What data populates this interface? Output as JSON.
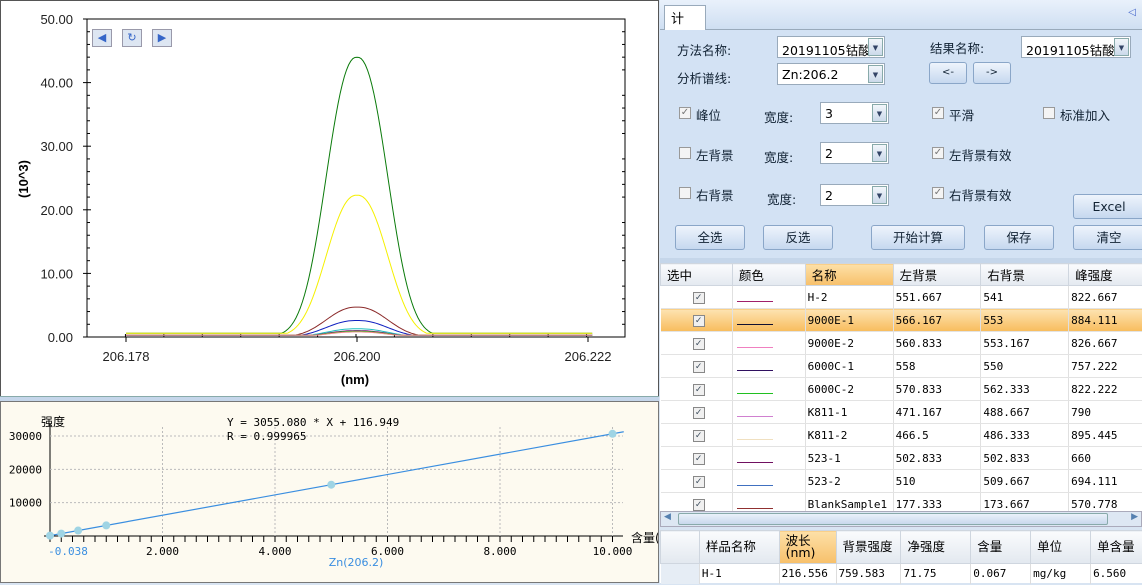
{
  "spectrum_chart": {
    "chart_data": {
      "type": "line",
      "ylabel": "(10^3)",
      "xlabel": "(nm)",
      "y_ticks": [
        "50.00",
        "40.00",
        "30.00",
        "20.00",
        "10.00",
        "0.00"
      ],
      "x_ticks": [
        "206.178",
        "206.200",
        "206.222"
      ],
      "ylim": [
        0,
        50
      ],
      "xlim": [
        206.1717,
        206.2285
      ],
      "series": [
        {
          "color": "#0a7a0a",
          "peak": 44.0
        },
        {
          "color": "#f5f000",
          "peak": 22.3
        },
        {
          "color": "#8b2a2a",
          "peak": 4.7
        },
        {
          "color": "#1020c0",
          "peak": 2.6
        },
        {
          "color": "#20c0c0",
          "peak": 1.3
        },
        {
          "color": "#800080",
          "peak": 1.0
        },
        {
          "color": "#20c020",
          "peak": 0.9
        },
        {
          "color": "#f08080",
          "peak": 0.8
        }
      ],
      "baseline": 0.6,
      "center": 206.2
    }
  },
  "calib_chart": {
    "chart_data": {
      "type": "scatter",
      "equation": "Y = 3055.080 * X + 116.949",
      "r_value": "R = 0.999965",
      "ylabel": "强度",
      "xlabel": "含量(",
      "series_label": "Zn(206.2)",
      "y_ticks": [
        "30000",
        "20000",
        "10000"
      ],
      "x_ticks": [
        "-0.038",
        "2.000",
        "4.000",
        "6.000",
        "8.000",
        "10.000"
      ],
      "xlim": [
        -0.038,
        10.25
      ],
      "ylim": [
        0,
        33000
      ],
      "slope": 3055.08,
      "intercept": 116.949,
      "points_x": [
        0,
        0.2,
        0.5,
        1,
        5,
        10
      ],
      "line_color": "#3a8ee0",
      "point_color": "#9fd4e4"
    }
  },
  "tab": {
    "label": "计 算"
  },
  "form": {
    "method_label": "方法名称:",
    "method_value": "20191105钴酸",
    "result_label": "结果名称:",
    "result_value": "20191105钴酸",
    "line_label": "分析谱线:",
    "line_value": "Zn:206.2",
    "prev": "<-",
    "next": "->",
    "peak": {
      "label": "峰位",
      "checked": true
    },
    "width_label": "宽度:",
    "width1": "3",
    "smooth": {
      "label": "平滑",
      "checked": true
    },
    "std_add": {
      "label": "标准加入",
      "checked": false
    },
    "left_bg": {
      "label": "左背景",
      "checked": false
    },
    "width2": "2",
    "left_bg_valid": {
      "label": "左背景有效",
      "checked": true
    },
    "right_bg": {
      "label": "右背景",
      "checked": false
    },
    "width3": "2",
    "right_bg_valid": {
      "label": "右背景有效",
      "checked": true
    },
    "excel": "Excel",
    "select_all": "全选",
    "invert": "反选",
    "calc": "开始计算",
    "save": "保存",
    "clear": "清空"
  },
  "grid": {
    "columns": [
      "选中",
      "颜色",
      "名称",
      "左背景",
      "右背景",
      "峰强度"
    ],
    "rows": [
      {
        "color": "#a0206a",
        "name": "H-2",
        "left": "551.667",
        "right": "541",
        "peak": "822.667"
      },
      {
        "color": "#101030",
        "name": "9000E-1",
        "left": "566.167",
        "right": "553",
        "peak": "884.111",
        "selected": true
      },
      {
        "color": "#f080c0",
        "name": "9000E-2",
        "left": "560.833",
        "right": "553.167",
        "peak": "826.667"
      },
      {
        "color": "#301060",
        "name": "6000C-1",
        "left": "558",
        "right": "550",
        "peak": "757.222"
      },
      {
        "color": "#20c020",
        "name": "6000C-2",
        "left": "570.833",
        "right": "562.333",
        "peak": "822.222"
      },
      {
        "color": "#d080d0",
        "name": "K811-1",
        "left": "471.167",
        "right": "488.667",
        "peak": "790"
      },
      {
        "color": "#f0e0c0",
        "name": "K811-2",
        "left": "466.5",
        "right": "486.333",
        "peak": "895.445"
      },
      {
        "color": "#701060",
        "name": "523-1",
        "left": "502.833",
        "right": "502.833",
        "peak": "660"
      },
      {
        "color": "#4070c0",
        "name": "523-2",
        "left": "510",
        "right": "509.667",
        "peak": "694.111"
      },
      {
        "color": "#903030",
        "name": "BlankSample1",
        "left": "177.333",
        "right": "173.667",
        "peak": "570.778"
      }
    ]
  },
  "results": {
    "columns": [
      "样品名称",
      "波长(nm)",
      "背景强度",
      "净强度",
      "含量",
      "单位",
      "单含量"
    ],
    "rows": [
      {
        "sample": "H-1",
        "wavelength": "216.556",
        "bg": "759.583",
        "net": "71.75",
        "content": "0.067",
        "unit": "mg/kg",
        "single": "6.560"
      }
    ]
  }
}
